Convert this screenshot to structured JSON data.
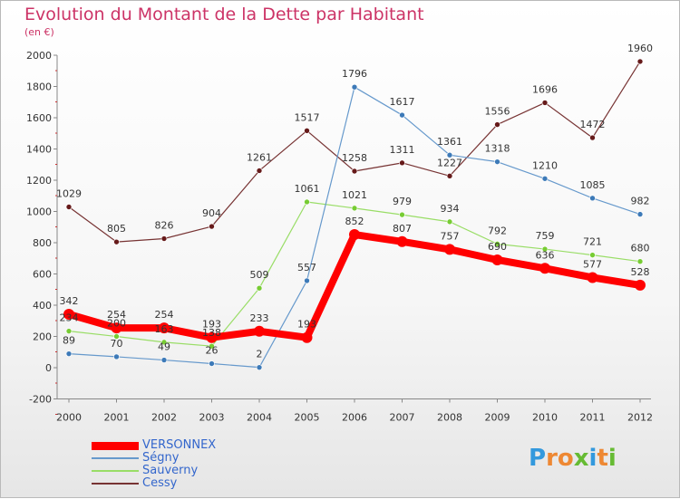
{
  "chart_data": {
    "type": "line",
    "title": "Evolution du Montant de la Dette par Habitant",
    "subtitle": "(en €)",
    "categories": [
      "2000",
      "2001",
      "2002",
      "2003",
      "2004",
      "2005",
      "2006",
      "2007",
      "2008",
      "2009",
      "2010",
      "2011",
      "2012"
    ],
    "ylim": [
      -200,
      2000
    ],
    "yticks": [
      -200,
      0,
      200,
      400,
      600,
      800,
      1000,
      1200,
      1400,
      1600,
      1800,
      2000
    ],
    "grid": false,
    "legend_position": "bottom-left",
    "series": [
      {
        "name": "VERSONNEX",
        "color": "#ff0000",
        "marker": "#ff0000",
        "values": [
          342,
          254,
          254,
          193,
          233,
          193,
          852,
          807,
          757,
          690,
          636,
          577,
          528
        ]
      },
      {
        "name": "Ségny",
        "color": "#6699cc",
        "marker": "#3d7ab8",
        "values": [
          89,
          70,
          49,
          26,
          2,
          557,
          1796,
          1617,
          1361,
          1318,
          1210,
          1085,
          982
        ]
      },
      {
        "name": "Sauverny",
        "color": "#99dd66",
        "marker": "#77cc33",
        "values": [
          234,
          200,
          163,
          138,
          509,
          1061,
          1021,
          979,
          934,
          792,
          759,
          721,
          680
        ]
      },
      {
        "name": "Cessy",
        "color": "#773333",
        "marker": "#661a1a",
        "values": [
          1029,
          805,
          826,
          904,
          1261,
          1517,
          1258,
          1311,
          1227,
          1556,
          1696,
          1472,
          1960
        ]
      }
    ]
  },
  "logo": {
    "letters": [
      {
        "char": "P",
        "color": "#3399dd"
      },
      {
        "char": "r",
        "color": "#ee8833"
      },
      {
        "char": "o",
        "color": "#ee8833"
      },
      {
        "char": "x",
        "color": "#66bb33"
      },
      {
        "char": "i",
        "color": "#3399dd"
      },
      {
        "char": "t",
        "color": "#ee8833"
      },
      {
        "char": "i",
        "color": "#66bb33"
      }
    ]
  }
}
